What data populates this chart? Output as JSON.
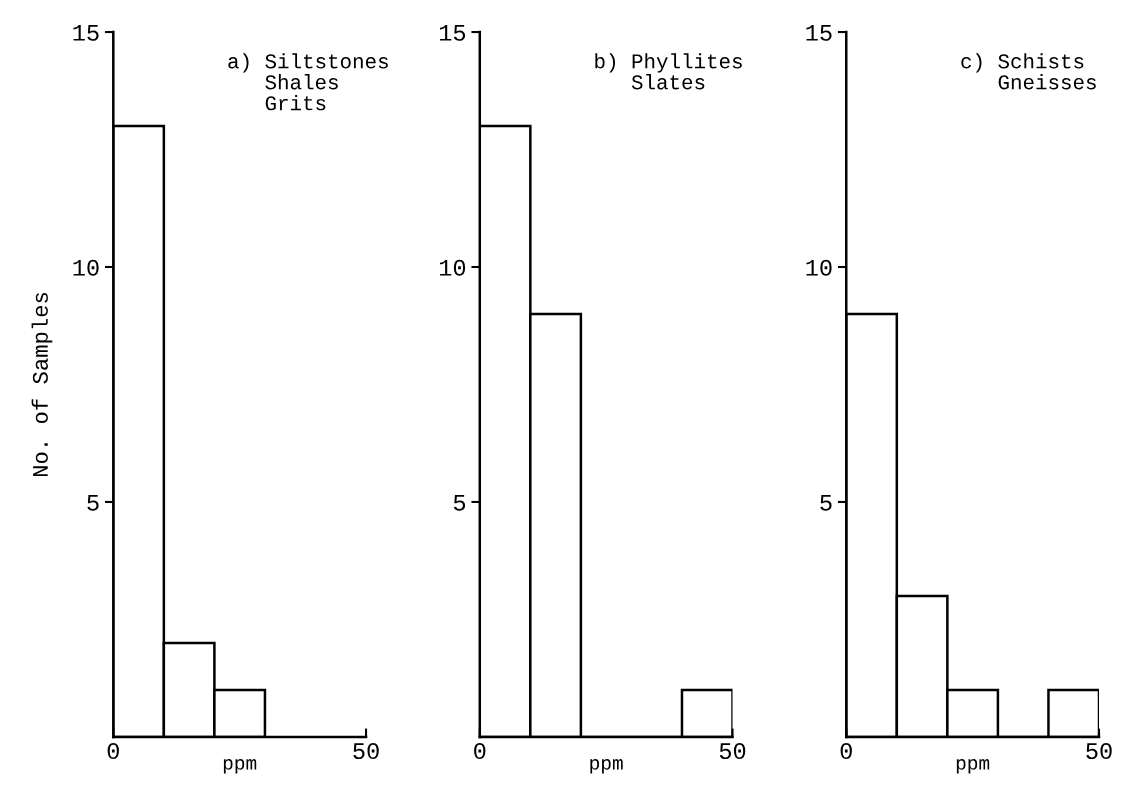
{
  "chart_data": [
    {
      "type": "histogram",
      "bins": [
        0,
        10,
        20,
        30
      ],
      "values": [
        13,
        2,
        1
      ],
      "color": "#ffffff",
      "xlabel": "ppm",
      "ylabel": "No. of Samples",
      "annotations": [
        "a) Siltstones\n   Shales\n   Grits"
      ],
      "xlim": [
        0,
        50
      ],
      "xticks": [
        0,
        50
      ],
      "ylim": [
        0,
        15
      ],
      "yticks": [
        5,
        10,
        15
      ],
      "grid": false
    },
    {
      "type": "histogram",
      "bins": [
        0,
        10,
        20,
        30,
        40,
        50
      ],
      "values": [
        13,
        9,
        0,
        0,
        1
      ],
      "color": "#ffffff",
      "xlabel": "ppm",
      "annotations": [
        "b) Phyllites\n   Slates"
      ],
      "xlim": [
        0,
        50
      ],
      "xticks": [
        0,
        50
      ],
      "ylim": [
        0,
        15
      ],
      "yticks": [
        5,
        10,
        15
      ],
      "grid": false
    },
    {
      "type": "histogram",
      "bins": [
        0,
        10,
        20,
        30,
        40,
        50
      ],
      "values": [
        9,
        3,
        1,
        0,
        1
      ],
      "color": "#ffffff",
      "xlabel": "ppm",
      "annotations": [
        "c) Schists\n   Gneisses"
      ],
      "xlim": [
        0,
        50
      ],
      "xticks": [
        0,
        50
      ],
      "ylim": [
        0,
        15
      ],
      "yticks": [
        5,
        10,
        15
      ],
      "grid": false
    }
  ]
}
